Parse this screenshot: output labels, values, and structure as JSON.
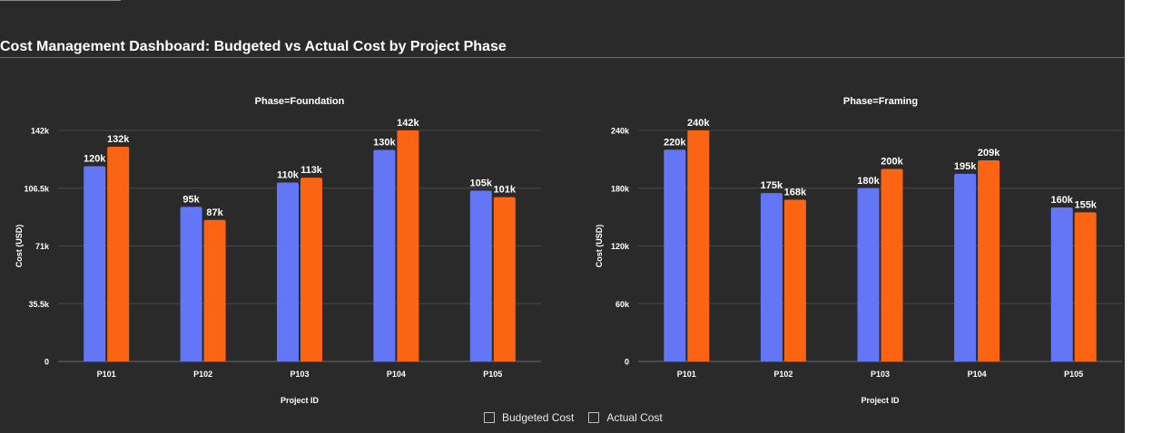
{
  "page": {
    "title": "Cost Management Dashboard: Budgeted vs Actual Cost by Project Phase"
  },
  "legend": {
    "items": [
      {
        "label": "Budgeted Cost",
        "color": "#6376f5"
      },
      {
        "label": "Actual Cost",
        "color": "#fa6413"
      }
    ]
  },
  "colors": {
    "budgeted": "#6376f5",
    "actual": "#fa6413",
    "grid": "#4a4a4a",
    "background": "#2a2a2a"
  },
  "chart_data": [
    {
      "type": "bar",
      "title": "Phase=Foundation",
      "xlabel": "Project ID",
      "ylabel": "Cost (USD)",
      "categories": [
        "P101",
        "P102",
        "P103",
        "P104",
        "P105"
      ],
      "ylim": [
        0,
        142000
      ],
      "yticks": [
        0,
        35500,
        71000,
        106500,
        142000
      ],
      "ytick_labels": [
        "0",
        "35.5k",
        "71k",
        "106.5k",
        "142k"
      ],
      "series": [
        {
          "name": "Budgeted Cost",
          "values": [
            120000,
            95000,
            110000,
            130000,
            105000
          ],
          "labels": [
            "120k",
            "95k",
            "110k",
            "130k",
            "105k"
          ]
        },
        {
          "name": "Actual Cost",
          "values": [
            132000,
            87000,
            113000,
            142000,
            101000
          ],
          "labels": [
            "132k",
            "87k",
            "113k",
            "142k",
            "101k"
          ]
        }
      ]
    },
    {
      "type": "bar",
      "title": "Phase=Framing",
      "xlabel": "Project ID",
      "ylabel": "Cost (USD)",
      "categories": [
        "P101",
        "P102",
        "P103",
        "P104",
        "P105"
      ],
      "ylim": [
        0,
        240000
      ],
      "yticks": [
        0,
        60000,
        120000,
        180000,
        240000
      ],
      "ytick_labels": [
        "0",
        "60k",
        "120k",
        "180k",
        "240k"
      ],
      "series": [
        {
          "name": "Budgeted Cost",
          "values": [
            220000,
            175000,
            180000,
            195000,
            160000
          ],
          "labels": [
            "220k",
            "175k",
            "180k",
            "195k",
            "160k"
          ]
        },
        {
          "name": "Actual Cost",
          "values": [
            240000,
            168000,
            200000,
            209000,
            155000
          ],
          "labels": [
            "240k",
            "168k",
            "200k",
            "209k",
            "155k"
          ]
        }
      ]
    }
  ]
}
